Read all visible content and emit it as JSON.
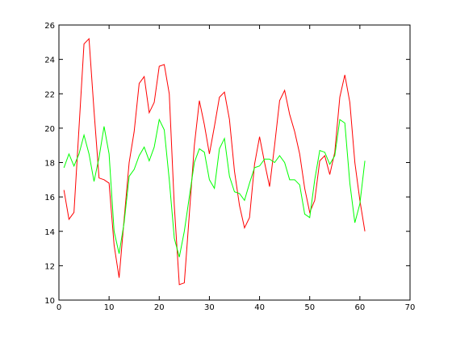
{
  "chart_data": {
    "type": "line",
    "x": [
      1,
      2,
      3,
      4,
      5,
      6,
      7,
      8,
      9,
      10,
      11,
      12,
      13,
      14,
      15,
      16,
      17,
      18,
      19,
      20,
      21,
      22,
      23,
      24,
      25,
      26,
      27,
      28,
      29,
      30,
      31,
      32,
      33,
      34,
      35,
      36,
      37,
      38,
      39,
      40,
      41,
      42,
      43,
      44,
      45,
      46,
      47,
      48,
      49,
      50,
      51,
      52,
      53,
      54,
      55,
      56,
      57,
      58,
      59,
      60,
      61
    ],
    "series": [
      {
        "color": "#ff0000",
        "values": [
          16.4,
          14.7,
          15.1,
          20.0,
          24.9,
          25.2,
          21.0,
          17.1,
          17.0,
          16.8,
          13.2,
          11.3,
          14.7,
          18.0,
          19.8,
          22.6,
          23.0,
          20.9,
          21.5,
          23.6,
          23.7,
          22.0,
          15.5,
          10.9,
          11.0,
          15.0,
          19.0,
          21.6,
          20.2,
          18.5,
          20.1,
          21.8,
          22.1,
          20.5,
          17.5,
          15.5,
          14.2,
          14.8,
          17.9,
          19.5,
          18.0,
          16.6,
          19.0,
          21.6,
          22.2,
          20.8,
          19.8,
          18.5,
          16.5,
          15.1,
          15.8,
          18.1,
          18.4,
          17.3,
          18.6,
          21.8,
          23.1,
          21.5,
          18.0,
          15.8,
          14.0
        ]
      },
      {
        "color": "#00ff00",
        "values": [
          17.7,
          18.5,
          17.8,
          18.5,
          19.6,
          18.5,
          16.9,
          18.3,
          20.1,
          18.5,
          14.0,
          12.7,
          14.5,
          17.2,
          17.6,
          18.4,
          18.9,
          18.1,
          18.9,
          20.5,
          19.9,
          17.0,
          13.6,
          12.5,
          14.0,
          16.0,
          18.0,
          18.8,
          18.6,
          17.0,
          16.5,
          18.8,
          19.4,
          17.2,
          16.3,
          16.2,
          15.8,
          16.8,
          17.7,
          17.8,
          18.2,
          18.2,
          18.0,
          18.4,
          18.0,
          17.0,
          17.0,
          16.7,
          15.0,
          14.8,
          17.0,
          18.7,
          18.6,
          17.9,
          18.4,
          20.5,
          20.3,
          16.8,
          14.5,
          15.6,
          18.1
        ]
      }
    ],
    "xlim": [
      0,
      70
    ],
    "xticks": [
      0,
      10,
      20,
      30,
      40,
      50,
      60,
      70
    ],
    "ylim": [
      10,
      26
    ],
    "yticks": [
      10,
      12,
      14,
      16,
      18,
      20,
      22,
      24,
      26
    ],
    "grid": false
  }
}
